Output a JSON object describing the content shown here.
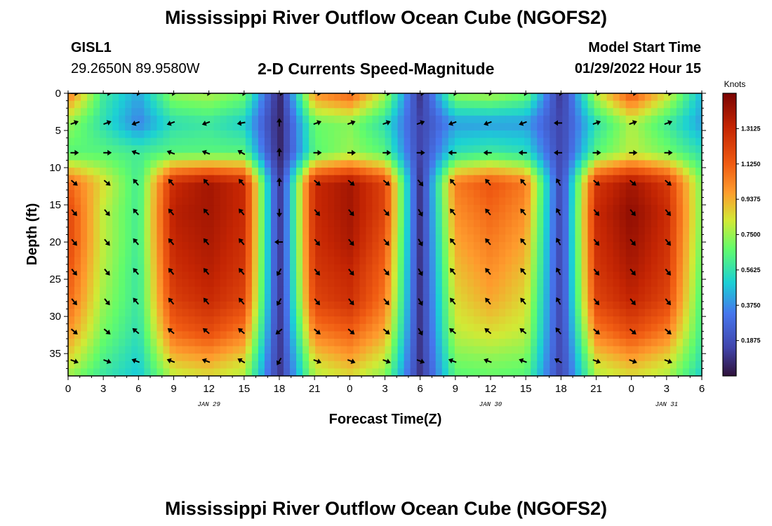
{
  "header": {
    "title": "Mississippi River Outflow Ocean Cube (NGOFS2)",
    "station_id": "GISL1",
    "station_coords": "29.2650N  89.9580W",
    "subtitle": "2-D Currents Speed-Magnitude",
    "model_start_label": "Model Start Time",
    "model_start_value": "01/29/2022 Hour 15"
  },
  "footer": {
    "title": "Mississippi River Outflow Ocean Cube (NGOFS2)"
  },
  "chart_data": {
    "type": "heatmap",
    "title": "2-D Currents Speed-Magnitude",
    "xlabel": "Forecast Time(Z)",
    "ylabel": "Depth (ft)",
    "x_hours_range": [
      0,
      54
    ],
    "x_tick_labels": [
      "0",
      "3",
      "6",
      "9",
      "12",
      "15",
      "18",
      "21",
      "0",
      "3",
      "6",
      "9",
      "12",
      "15",
      "18",
      "21",
      "0",
      "3",
      "6"
    ],
    "date_labels": [
      {
        "label": "JAN 29",
        "hour": 12
      },
      {
        "label": "JAN 30",
        "hour": 36
      },
      {
        "label": "JAN 31",
        "hour": 51
      }
    ],
    "y_range": [
      0,
      38
    ],
    "y_ticks": [
      0,
      5,
      10,
      15,
      20,
      25,
      30,
      35
    ],
    "colorbar": {
      "unit": "Knots",
      "range": [
        0,
        1.5
      ],
      "ticks": [
        "0.1875",
        "0.3750",
        "0.5625",
        "0.7500",
        "0.9375",
        "1.1250",
        "1.3125"
      ],
      "tick_values": [
        0.1875,
        0.375,
        0.5625,
        0.75,
        0.9375,
        1.125,
        1.3125
      ]
    },
    "speed_time_hours": [
      0,
      3,
      6,
      9,
      12,
      15,
      18,
      21,
      24,
      27,
      30,
      33,
      36,
      39,
      42,
      45,
      48,
      51,
      54
    ],
    "speed_depth_ft": [
      0,
      4,
      8,
      12,
      16,
      20,
      24,
      28,
      32,
      36,
      38
    ],
    "speed_knots": [
      [
        1.05,
        0.6,
        0.42,
        0.75,
        0.78,
        0.7,
        0.05,
        1.0,
        1.12,
        0.78,
        0.1,
        0.75,
        0.78,
        0.7,
        0.1,
        0.8,
        1.15,
        0.85,
        0.45
      ],
      [
        0.75,
        0.55,
        0.35,
        0.55,
        0.58,
        0.5,
        0.05,
        0.68,
        0.72,
        0.55,
        0.15,
        0.4,
        0.4,
        0.4,
        0.15,
        0.55,
        0.78,
        0.6,
        0.4
      ],
      [
        0.65,
        0.65,
        0.6,
        0.65,
        0.65,
        0.65,
        0.05,
        0.65,
        0.75,
        0.65,
        0.15,
        0.55,
        0.6,
        0.55,
        0.15,
        0.65,
        0.8,
        0.7,
        0.55
      ],
      [
        1.1,
        0.85,
        0.6,
        1.3,
        1.4,
        1.3,
        0.1,
        1.3,
        1.4,
        1.2,
        0.1,
        1.05,
        1.15,
        1.05,
        0.15,
        1.25,
        1.4,
        1.25,
        0.7
      ],
      [
        1.2,
        0.8,
        0.6,
        1.35,
        1.4,
        1.3,
        0.1,
        1.3,
        1.4,
        1.2,
        0.1,
        1.0,
        1.1,
        1.0,
        0.15,
        1.3,
        1.45,
        1.3,
        0.7
      ],
      [
        1.2,
        0.8,
        0.6,
        1.32,
        1.38,
        1.28,
        0.1,
        1.28,
        1.38,
        1.15,
        0.1,
        0.95,
        1.05,
        0.95,
        0.15,
        1.28,
        1.42,
        1.28,
        0.68
      ],
      [
        1.15,
        0.78,
        0.58,
        1.28,
        1.35,
        1.25,
        0.1,
        1.25,
        1.32,
        1.1,
        0.1,
        0.9,
        1.0,
        0.9,
        0.15,
        1.25,
        1.38,
        1.25,
        0.65
      ],
      [
        1.1,
        0.75,
        0.58,
        1.22,
        1.3,
        1.2,
        0.1,
        1.2,
        1.28,
        1.05,
        0.1,
        0.85,
        0.95,
        0.85,
        0.15,
        1.2,
        1.32,
        1.2,
        0.62
      ],
      [
        1.0,
        0.7,
        0.55,
        1.1,
        1.18,
        1.05,
        0.1,
        1.05,
        1.12,
        0.95,
        0.1,
        0.8,
        0.85,
        0.8,
        0.15,
        1.05,
        1.18,
        1.05,
        0.6
      ],
      [
        0.85,
        0.62,
        0.5,
        0.9,
        0.95,
        0.85,
        0.1,
        0.85,
        0.95,
        0.8,
        0.1,
        0.7,
        0.72,
        0.7,
        0.15,
        0.85,
        0.95,
        0.85,
        0.55
      ],
      [
        0.75,
        0.58,
        0.48,
        0.8,
        0.85,
        0.78,
        0.1,
        0.78,
        0.85,
        0.72,
        0.1,
        0.65,
        0.68,
        0.65,
        0.15,
        0.78,
        0.85,
        0.78,
        0.5
      ]
    ],
    "arrow_time_hours": [
      0.5,
      3.3,
      5.8,
      8.8,
      11.8,
      14.8,
      18,
      21.2,
      24.1,
      27.1,
      30,
      32.8,
      35.8,
      38.8,
      41.8,
      45,
      48.1,
      51.1
    ],
    "arrow_depth_ft": [
      0,
      4,
      8,
      12,
      16,
      20,
      24,
      28,
      32,
      36
    ],
    "arrow_direction_deg": [
      [
        90,
        90,
        90,
        90,
        90,
        90,
        90,
        90,
        90,
        90,
        90,
        90,
        90,
        90,
        90,
        90,
        90,
        90
      ],
      [
        70,
        70,
        250,
        250,
        250,
        260,
        0,
        70,
        70,
        70,
        70,
        250,
        250,
        250,
        270,
        70,
        70,
        70
      ],
      [
        90,
        90,
        290,
        290,
        290,
        300,
        0,
        90,
        90,
        90,
        90,
        270,
        270,
        270,
        270,
        90,
        90,
        90
      ],
      [
        130,
        130,
        320,
        320,
        320,
        320,
        0,
        130,
        130,
        130,
        140,
        320,
        320,
        320,
        330,
        130,
        130,
        130
      ],
      [
        140,
        140,
        320,
        320,
        320,
        320,
        180,
        140,
        140,
        140,
        150,
        320,
        320,
        320,
        330,
        140,
        140,
        140
      ],
      [
        140,
        140,
        320,
        320,
        320,
        320,
        270,
        140,
        140,
        140,
        150,
        320,
        320,
        320,
        330,
        140,
        140,
        140
      ],
      [
        140,
        140,
        320,
        320,
        320,
        320,
        210,
        140,
        140,
        140,
        150,
        320,
        320,
        320,
        330,
        140,
        140,
        140
      ],
      [
        140,
        140,
        320,
        320,
        320,
        320,
        210,
        140,
        140,
        140,
        150,
        320,
        320,
        320,
        330,
        140,
        140,
        140
      ],
      [
        130,
        130,
        310,
        310,
        310,
        310,
        230,
        130,
        130,
        130,
        150,
        310,
        310,
        310,
        320,
        130,
        130,
        130
      ],
      [
        110,
        110,
        290,
        290,
        290,
        300,
        210,
        110,
        110,
        110,
        110,
        290,
        290,
        290,
        300,
        110,
        110,
        110
      ]
    ]
  }
}
